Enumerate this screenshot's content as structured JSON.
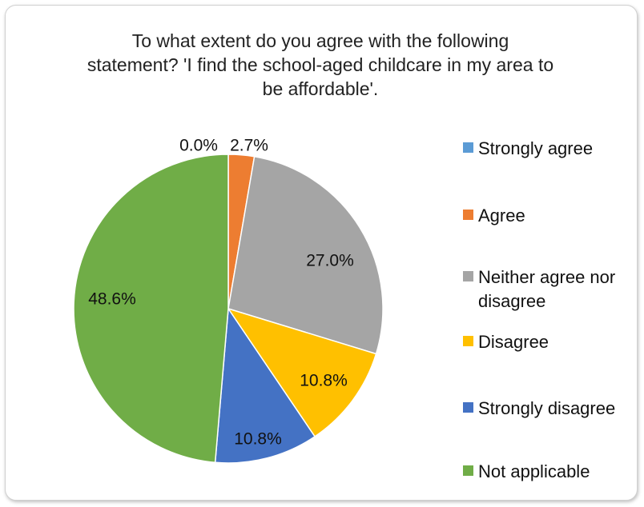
{
  "chart_data": {
    "type": "pie",
    "title": "To what extent do you agree with the following\nstatement? 'I find the school-aged childcare in my area to\nbe affordable'.",
    "categories": [
      "Strongly agree",
      "Agree",
      "Neither agree nor disagree",
      "Disagree",
      "Strongly disagree",
      "Not applicable"
    ],
    "values": [
      0.0,
      2.7,
      27.0,
      10.8,
      10.8,
      48.6
    ],
    "data_labels": [
      "0.0%",
      "2.7%",
      "27.0%",
      "10.8%",
      "10.8%",
      "48.6%"
    ],
    "colors": [
      "#5B9BD5",
      "#ED7D31",
      "#A5A5A5",
      "#FFC000",
      "#4472C4",
      "#70AD47"
    ],
    "legend_position": "right",
    "start_angle_deg": 0,
    "direction": "clockwise"
  }
}
